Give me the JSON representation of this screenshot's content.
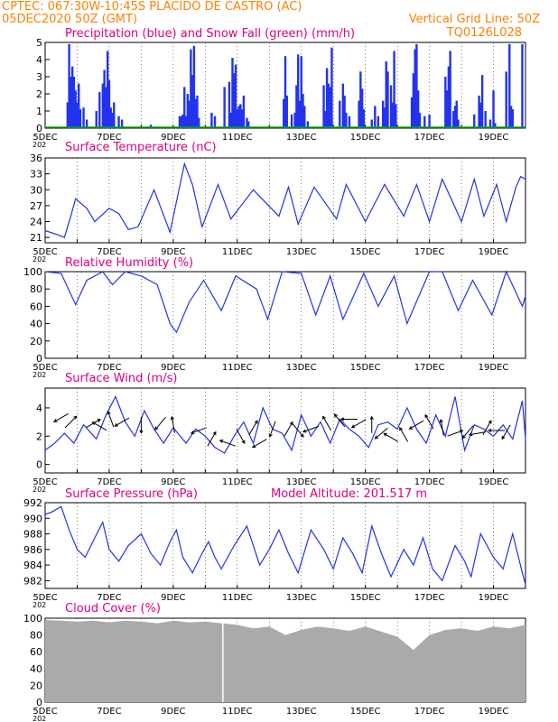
{
  "header": {
    "line1_left": "CPTEC:   067:30W-10:45S   PLACIDO DE CASTRO (AC)",
    "line2_left": "05DEC2020 50Z (GMT)",
    "line2_right": "Vertical Grid Line: 50Z",
    "line3_right": "TQ0126L028"
  },
  "colors": {
    "header": "#ff8000",
    "title": "#e0007f",
    "series": "#2233ee",
    "snow": "#00aa00",
    "cloud": "#aaaaaa"
  },
  "x_axis": {
    "labels": [
      "5DEC",
      "7DEC",
      "9DEC",
      "11DEC",
      "13DEC",
      "15DEC",
      "17DEC",
      "19DEC"
    ],
    "year_fragment": "202",
    "range_days": [
      5,
      20
    ]
  },
  "chart_data": [
    {
      "type": "bar",
      "title": "Precipitation (blue) and Snow Fall (green) (mm/h)",
      "ylim": [
        0,
        5
      ],
      "yticks": [
        0,
        1,
        2,
        3,
        4,
        5
      ],
      "series": [
        {
          "name": "Precipitation",
          "color": "#2233ee",
          "x": [
            5.7,
            5.75,
            5.8,
            5.85,
            5.9,
            5.95,
            6.0,
            6.05,
            6.1,
            6.2,
            6.3,
            6.6,
            6.7,
            6.8,
            6.85,
            6.9,
            6.95,
            7.0,
            7.05,
            7.1,
            7.15,
            7.3,
            7.4,
            8.3,
            9.2,
            9.25,
            9.3,
            9.35,
            9.4,
            9.45,
            9.5,
            9.55,
            9.6,
            9.65,
            9.7,
            9.75,
            9.8,
            10.2,
            10.3,
            10.6,
            10.75,
            10.8,
            10.85,
            10.9,
            10.95,
            11.0,
            11.05,
            11.1,
            11.15,
            11.2,
            11.3,
            11.35,
            12.45,
            12.5,
            12.55,
            12.7,
            12.8,
            12.85,
            12.9,
            12.95,
            13.0,
            13.05,
            13.1,
            13.2,
            13.7,
            13.75,
            13.8,
            13.85,
            13.9,
            13.95,
            14.2,
            14.3,
            14.35,
            14.4,
            14.5,
            14.8,
            14.85,
            14.9,
            14.95,
            15.2,
            15.3,
            15.4,
            15.55,
            15.6,
            15.65,
            15.7,
            15.8,
            15.85,
            15.9,
            15.95,
            16.45,
            16.5,
            16.55,
            16.6,
            16.65,
            16.7,
            16.85,
            17.0,
            17.5,
            17.55,
            17.6,
            17.65,
            17.75,
            17.8,
            17.85,
            17.9,
            18.4,
            18.55,
            18.6,
            18.65,
            18.75,
            18.9,
            19.0,
            19.05,
            19.4,
            19.5,
            19.55,
            19.6,
            19.9
          ],
          "values": [
            1.5,
            4.9,
            3.0,
            3.6,
            3.0,
            2.2,
            1.5,
            2.6,
            1.1,
            1.2,
            0.5,
            1.0,
            2.1,
            2.6,
            3.4,
            2.4,
            4.5,
            2.8,
            1.2,
            0.9,
            1.5,
            0.7,
            0.5,
            0.2,
            0.7,
            0.7,
            0.8,
            2.4,
            0.7,
            2.0,
            1.6,
            4.6,
            3.1,
            4.8,
            1.7,
            1.9,
            0.6,
            0.9,
            0.7,
            2.4,
            2.7,
            0.9,
            4.1,
            3.2,
            3.7,
            1.1,
            1.3,
            1.4,
            1.1,
            1.9,
            0.6,
            0.4,
            1.7,
            4.2,
            1.9,
            0.8,
            0.9,
            2.5,
            4.3,
            1.6,
            4.2,
            2.0,
            1.3,
            0.4,
            2.5,
            1.0,
            3.5,
            2.6,
            2.4,
            4.7,
            1.6,
            2.6,
            1.9,
            0.9,
            0.7,
            1.6,
            3.3,
            2.3,
            1.1,
            0.5,
            1.3,
            0.7,
            1.6,
            1.2,
            3.9,
            3.3,
            2.5,
            1.5,
            4.5,
            1.4,
            1.8,
            3.2,
            4.6,
            4.9,
            2.2,
            0.9,
            0.7,
            0.8,
            3.0,
            2.2,
            3.6,
            4.5,
            1.0,
            1.3,
            1.6,
            0.5,
            0.8,
            1.9,
            1.5,
            3.1,
            1.0,
            0.5,
            2.2,
            0.3,
            3.3,
            4.9,
            1.3,
            1.1,
            4.9
          ]
        },
        {
          "name": "Snow Fall",
          "color": "#00aa00",
          "values": [
            0
          ]
        }
      ]
    },
    {
      "type": "line",
      "title": "Surface Temperature (nC)",
      "ylim": [
        20,
        36
      ],
      "yticks": [
        21,
        24,
        27,
        30,
        33,
        36
      ],
      "x": [
        5.0,
        5.4,
        5.6,
        5.8,
        5.95,
        6.3,
        6.55,
        7.0,
        7.3,
        7.6,
        7.9,
        8.4,
        8.9,
        9.35,
        9.6,
        9.9,
        10.4,
        10.8,
        11.5,
        12.3,
        12.6,
        12.9,
        13.4,
        14.1,
        14.4,
        15.0,
        15.6,
        16.2,
        16.6,
        17.0,
        17.4,
        18.0,
        18.4,
        18.7,
        19.1,
        19.4,
        19.7,
        19.85,
        20.0
      ],
      "values": [
        22.3,
        21.5,
        21.0,
        25.0,
        28.3,
        26.5,
        24.0,
        26.5,
        25.5,
        22.5,
        23.0,
        30.0,
        22.0,
        34.9,
        31.0,
        23.0,
        31.0,
        24.5,
        30.0,
        25.0,
        30.5,
        23.5,
        30.5,
        24.5,
        31.0,
        24.0,
        31.0,
        25.0,
        31.0,
        24.0,
        32.0,
        24.0,
        32.0,
        25.0,
        31.0,
        24.0,
        30.5,
        32.5,
        32.0
      ]
    },
    {
      "type": "line",
      "title": "Relative Humidity (%)",
      "ylim": [
        0,
        100
      ],
      "yticks": [
        0,
        20,
        40,
        60,
        80,
        100
      ],
      "x": [
        5.0,
        5.5,
        5.95,
        6.3,
        6.8,
        7.1,
        7.5,
        8.0,
        8.5,
        8.9,
        9.1,
        9.5,
        9.95,
        10.5,
        10.95,
        11.6,
        11.95,
        12.4,
        13.0,
        13.45,
        13.9,
        14.3,
        14.95,
        15.4,
        15.9,
        16.3,
        17.0,
        17.4,
        17.9,
        18.35,
        18.95,
        19.4,
        19.9,
        20.0
      ],
      "values": [
        100,
        98,
        62,
        90,
        100,
        85,
        100,
        95,
        85,
        40,
        30,
        65,
        90,
        55,
        95,
        80,
        45,
        100,
        98,
        50,
        95,
        45,
        98,
        60,
        95,
        40,
        100,
        100,
        55,
        90,
        50,
        100,
        60,
        72
      ]
    },
    {
      "type": "line",
      "title": "Surface Wind (m/s)",
      "ylim": [
        -0.6,
        5.4
      ],
      "yticks": [
        0,
        2,
        4
      ],
      "x": [
        5.0,
        5.3,
        5.6,
        5.9,
        6.2,
        6.6,
        6.9,
        7.2,
        7.5,
        7.8,
        8.1,
        8.4,
        8.7,
        9.0,
        9.4,
        9.7,
        10.0,
        10.3,
        10.6,
        10.9,
        11.2,
        11.5,
        11.8,
        12.1,
        12.4,
        12.7,
        13.0,
        13.3,
        13.6,
        13.9,
        14.2,
        14.5,
        14.8,
        15.1,
        15.4,
        15.7,
        16.0,
        16.3,
        16.6,
        16.9,
        17.2,
        17.5,
        17.8,
        18.1,
        18.4,
        18.7,
        19.0,
        19.3,
        19.6,
        19.9,
        20.0
      ],
      "values": [
        1.0,
        1.5,
        2.2,
        1.5,
        2.8,
        1.8,
        3.5,
        4.8,
        3.0,
        2.0,
        3.8,
        2.5,
        1.5,
        2.6,
        1.5,
        2.5,
        2.0,
        1.2,
        0.8,
        2.0,
        3.0,
        1.5,
        4.0,
        2.5,
        2.2,
        1.0,
        3.5,
        2.0,
        3.0,
        1.5,
        3.2,
        2.5,
        2.0,
        1.2,
        2.8,
        3.0,
        2.5,
        4.0,
        2.5,
        1.5,
        3.5,
        2.0,
        4.8,
        1.0,
        2.8,
        2.5,
        2.0,
        2.8,
        1.8,
        4.5,
        1.8
      ],
      "arrows": {
        "x": [
          5.5,
          5.8,
          6.5,
          6.7,
          7.05,
          7.4,
          8.0,
          8.6,
          9.0,
          9.8,
          10.2,
          10.7,
          11.1,
          11.5,
          11.7,
          12.1,
          12.6,
          12.9,
          13.3,
          13.8,
          14.2,
          14.5,
          14.8,
          15.2,
          15.5,
          15.8,
          16.2,
          16.6,
          17.0,
          17.4,
          17.8,
          18.2,
          18.5,
          18.8,
          19.1,
          19.4
        ],
        "speed": [
          3.3,
          3.0,
          2.9,
          2.7,
          3.2,
          3.0,
          2.8,
          2.9,
          2.8,
          2.4,
          1.8,
          1.5,
          2.0,
          2.6,
          1.5,
          2.5,
          2.5,
          2.4,
          2.5,
          2.9,
          3.1,
          3.2,
          2.9,
          2.8,
          2.2,
          1.9,
          2.1,
          2.8,
          3.0,
          2.6,
          2.2,
          2.3,
          2.2,
          2.6,
          2.4,
          2.3
        ],
        "dir_deg": [
          210,
          45,
          30,
          150,
          110,
          210,
          270,
          230,
          100,
          200,
          60,
          160,
          300,
          60,
          210,
          250,
          60,
          310,
          200,
          120,
          130,
          180,
          210,
          90,
          220,
          150,
          120,
          210,
          120,
          100,
          20,
          230,
          190,
          60,
          180,
          240
        ]
      }
    },
    {
      "type": "line",
      "title": "Surface Pressure (hPa)",
      "annotation": "Model Altitude: 201.517 m",
      "ylim": [
        981,
        992
      ],
      "yticks": [
        982,
        984,
        986,
        988,
        990,
        992
      ],
      "x": [
        5.0,
        5.2,
        5.5,
        5.75,
        6.0,
        6.25,
        6.55,
        6.8,
        7.0,
        7.3,
        7.6,
        8.0,
        8.3,
        8.6,
        8.9,
        9.1,
        9.3,
        9.6,
        9.9,
        10.1,
        10.3,
        10.5,
        10.9,
        11.3,
        11.7,
        12.0,
        12.3,
        12.6,
        12.9,
        13.3,
        13.7,
        14.0,
        14.3,
        14.6,
        14.9,
        15.2,
        15.5,
        15.8,
        16.2,
        16.5,
        16.8,
        17.1,
        17.4,
        17.8,
        18.1,
        18.3,
        18.6,
        19.0,
        19.3,
        19.6,
        19.9,
        20.0
      ],
      "values": [
        990.5,
        990.8,
        991.5,
        988.5,
        986.0,
        985.0,
        987.5,
        989.5,
        986.0,
        984.5,
        986.5,
        988.0,
        985.5,
        984.0,
        987.0,
        988.5,
        985.0,
        983.0,
        985.5,
        987.0,
        985.0,
        983.5,
        986.5,
        989.0,
        984.0,
        986.0,
        988.5,
        985.5,
        983.0,
        988.5,
        986.0,
        983.5,
        987.5,
        985.5,
        983.0,
        989.0,
        985.5,
        982.5,
        986.0,
        984.0,
        987.5,
        983.5,
        982.0,
        986.5,
        984.5,
        982.5,
        988.0,
        985.0,
        983.5,
        988.0,
        983.0,
        981.5
      ]
    },
    {
      "type": "area",
      "title": "Cloud Cover (%)",
      "ylim": [
        0,
        100
      ],
      "yticks": [
        0,
        20,
        40,
        60,
        80,
        100
      ],
      "x": [
        5.0,
        5.5,
        6.0,
        6.5,
        7.0,
        7.5,
        8.0,
        8.5,
        9.0,
        9.5,
        10.0,
        10.5,
        11.0,
        11.5,
        12.0,
        12.5,
        13.0,
        13.5,
        14.0,
        14.5,
        15.0,
        15.5,
        16.0,
        16.5,
        17.0,
        17.5,
        18.0,
        18.5,
        19.0,
        19.5,
        20.0
      ],
      "values": [
        98,
        97,
        96,
        97,
        95,
        97,
        96,
        94,
        97,
        95,
        96,
        94,
        92,
        88,
        90,
        80,
        86,
        90,
        88,
        85,
        90,
        84,
        78,
        62,
        80,
        86,
        88,
        85,
        90,
        88,
        92
      ]
    }
  ]
}
